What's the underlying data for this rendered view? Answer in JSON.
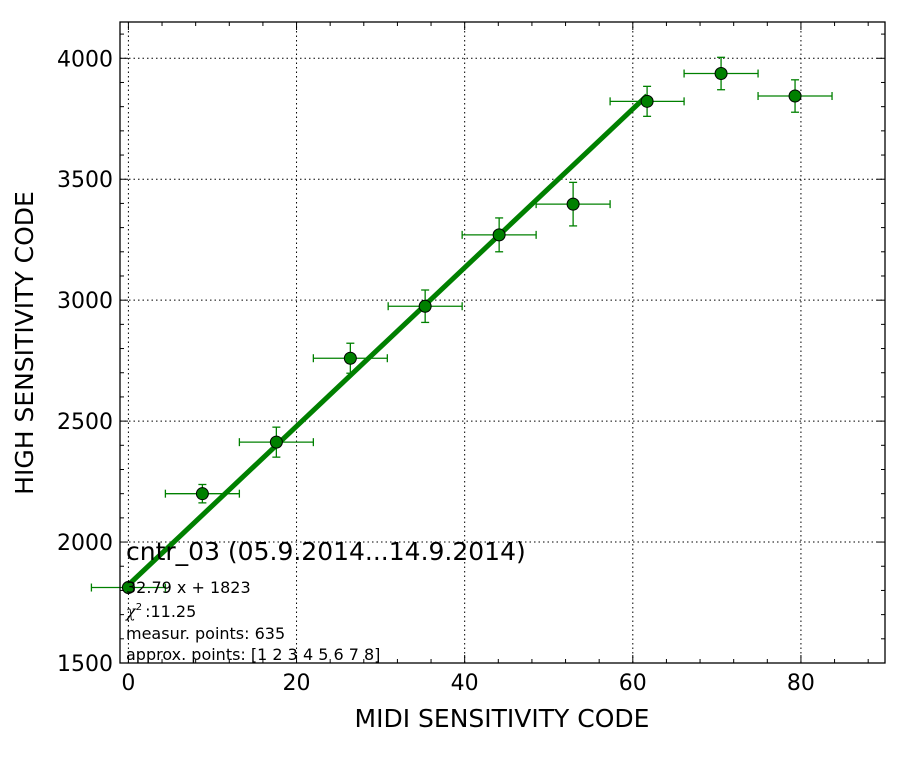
{
  "chart_data": {
    "type": "scatter",
    "xlabel": "MIDI SENSITIVITY CODE",
    "ylabel": "HIGH SENSITIVITY CODE",
    "xlim": [
      -1,
      90
    ],
    "ylim": [
      1500,
      4150
    ],
    "grid": true,
    "xticks": [
      0,
      20,
      40,
      60,
      80
    ],
    "yticks": [
      1500,
      2000,
      2500,
      3000,
      3500,
      4000
    ],
    "marker_color": "#008000",
    "line_color": "#008000",
    "points": [
      {
        "x": 0.0,
        "y": 1812,
        "xerr": 4.4,
        "yerr": 0
      },
      {
        "x": 8.8,
        "y": 2200,
        "xerr": 4.4,
        "yerr": 38
      },
      {
        "x": 17.6,
        "y": 2413,
        "xerr": 4.4,
        "yerr": 62
      },
      {
        "x": 26.4,
        "y": 2760,
        "xerr": 4.4,
        "yerr": 62
      },
      {
        "x": 35.3,
        "y": 2975,
        "xerr": 4.4,
        "yerr": 67
      },
      {
        "x": 44.1,
        "y": 3270,
        "xerr": 4.4,
        "yerr": 70
      },
      {
        "x": 52.9,
        "y": 3397,
        "xerr": 4.4,
        "yerr": 90
      },
      {
        "x": 61.7,
        "y": 3822,
        "xerr": 4.4,
        "yerr": 62
      },
      {
        "x": 70.5,
        "y": 3937,
        "xerr": 4.4,
        "yerr": 67
      },
      {
        "x": 79.3,
        "y": 3844,
        "xerr": 4.4,
        "yerr": 67
      }
    ],
    "fit": {
      "slope": 32.79,
      "intercept": 1823,
      "x_range": [
        0,
        61.7
      ]
    },
    "annotations": {
      "title": "cntr_03 (05.9.2014...14.9.2014)",
      "equation": "32.79 x + 1823",
      "chi2": ":11.25",
      "measur_points": "measur. points: 635",
      "approx_points": "approx. points: [1 2 3 4 5 6 7 8]"
    }
  }
}
